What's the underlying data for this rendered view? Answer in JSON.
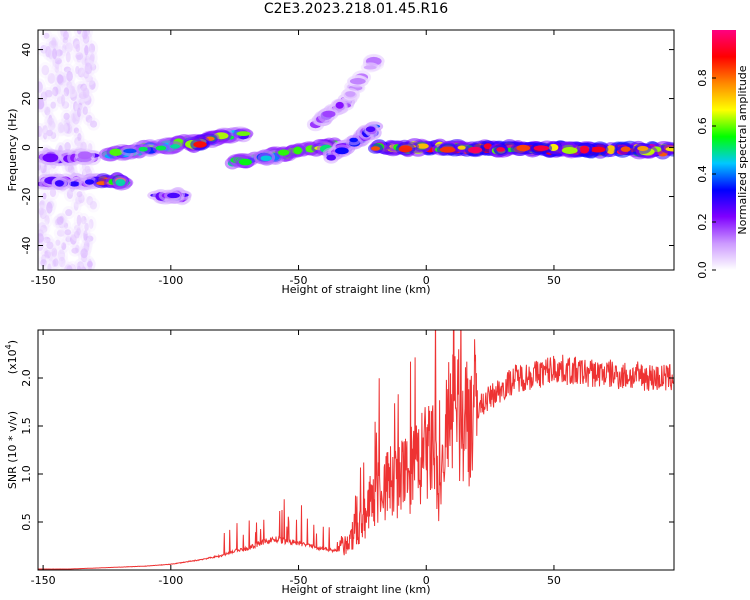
{
  "title": "C2E3.2023.218.01.45.R16",
  "chart_data": [
    {
      "type": "heatmap",
      "xlabel": "Height of straight line (km)",
      "ylabel": "Frequency (Hz)",
      "xlim": [
        -152,
        97
      ],
      "ylim": [
        -50,
        48
      ],
      "xticks": [
        -150,
        -100,
        -50,
        0,
        50
      ],
      "yticks": [
        -40,
        -20,
        0,
        20,
        40
      ],
      "colorbar": {
        "label": "Normalized spectral amplitude",
        "range": [
          0.0,
          1.0
        ],
        "ticks": [
          0.0,
          0.2,
          0.4,
          0.6,
          0.8
        ],
        "colors": [
          "#ffffff",
          "#cc99ff",
          "#7f00ff",
          "#0000ff",
          "#00c8ff",
          "#00ff00",
          "#ffff00",
          "#ff8800",
          "#ff0000",
          "#ff0080"
        ]
      },
      "features": [
        {
          "x": [
            -152,
            -130
          ],
          "y": [
            -50,
            48
          ],
          "amplitude": 0.08
        },
        {
          "x": [
            -150,
            -128
          ],
          "y": [
            -14,
            -14
          ],
          "amplitude": 0.3
        },
        {
          "x": [
            -128,
            -118
          ],
          "y": [
            -14,
            -14
          ],
          "amplitude": 0.75
        },
        {
          "x": [
            -150,
            -130
          ],
          "y": [
            -4,
            -4
          ],
          "amplitude": 0.25
        },
        {
          "x": [
            -124,
            -70
          ],
          "y": [
            -3,
            6
          ],
          "amplitude": 0.55
        },
        {
          "x": [
            -92,
            -80
          ],
          "y": [
            1,
            5
          ],
          "amplitude": 0.85
        },
        {
          "x": [
            -76,
            -35
          ],
          "y": [
            -6,
            1
          ],
          "amplitude": 0.6
        },
        {
          "x": [
            -38,
            -20
          ],
          "y": [
            -4,
            8
          ],
          "amplitude": 0.35
        },
        {
          "x": [
            -45,
            -30
          ],
          "y": [
            8,
            20
          ],
          "amplitude": 0.25
        },
        {
          "x": [
            -30,
            -20
          ],
          "y": [
            22,
            35
          ],
          "amplitude": 0.15
        },
        {
          "x": [
            -20,
            97
          ],
          "y": [
            0,
            -1
          ],
          "amplitude": 0.9
        },
        {
          "x": [
            -105,
            -95
          ],
          "y": [
            -20,
            -20
          ],
          "amplitude": 0.3
        }
      ]
    },
    {
      "type": "line",
      "xlabel": "Height of straight line (km)",
      "ylabel": "SNR (10 * v/v)",
      "scale_note": "(x10",
      "scale_exponent": "4",
      "xlim": [
        -152,
        97
      ],
      "ylim": [
        0,
        2.5
      ],
      "xticks": [
        -150,
        -100,
        -50,
        0,
        50
      ],
      "yticks": [
        0.5,
        1.0,
        1.5,
        2.0
      ],
      "color": "#ee3333",
      "x": [
        -152,
        -140,
        -130,
        -120,
        -110,
        -100,
        -90,
        -80,
        -75,
        -70,
        -65,
        -60,
        -55,
        -50,
        -45,
        -40,
        -35,
        -30,
        -25,
        -20,
        -15,
        -10,
        -5,
        0,
        3,
        5,
        8,
        10,
        15,
        20,
        25,
        30,
        35,
        40,
        45,
        50,
        55,
        60,
        65,
        70,
        75,
        80,
        85,
        90,
        97
      ],
      "y": [
        0.01,
        0.01,
        0.02,
        0.03,
        0.04,
        0.06,
        0.1,
        0.15,
        0.2,
        0.22,
        0.28,
        0.32,
        0.3,
        0.28,
        0.25,
        0.22,
        0.2,
        0.28,
        0.5,
        0.8,
        0.9,
        0.95,
        1.05,
        1.2,
        1.3,
        0.7,
        1.5,
        1.55,
        1.62,
        1.68,
        1.8,
        1.9,
        2.0,
        2.02,
        2.05,
        2.1,
        2.08,
        2.06,
        2.05,
        2.05,
        2.03,
        2.02,
        2.02,
        2.0,
        2.0
      ]
    }
  ]
}
